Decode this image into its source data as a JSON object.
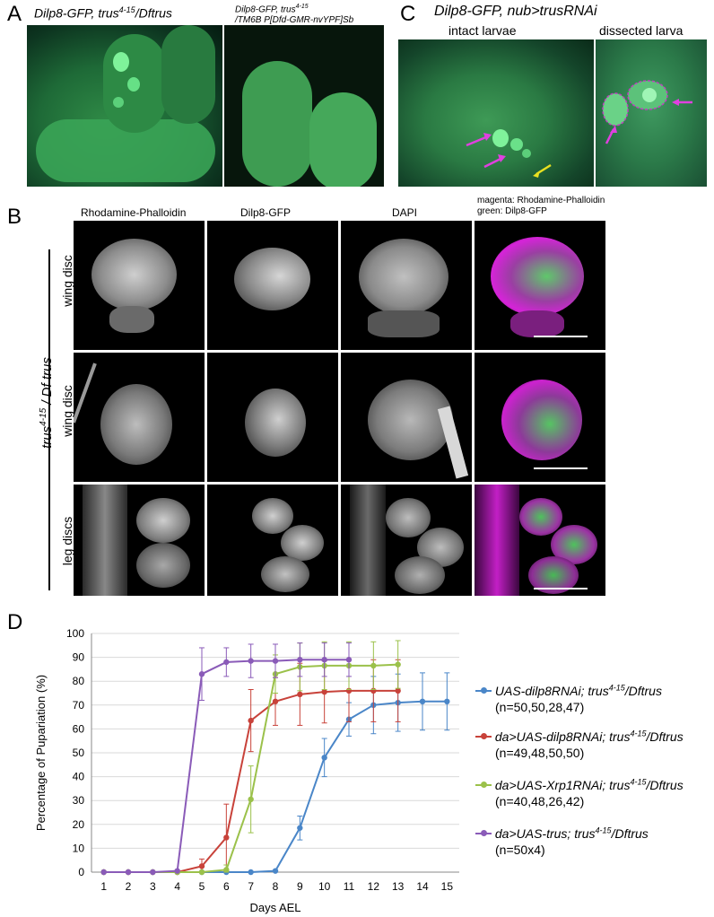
{
  "panelA": {
    "letter": "A",
    "left_label": "Dilp8-GFP, trus4-15/Dftrus",
    "right_label_line1": "Dilp8-GFP, trus4-15",
    "right_label_line2": "/TM6B P[Dfd-GMR-nvYPF]Sb"
  },
  "panelC": {
    "letter": "C",
    "title": "Dilp8-GFP, nub>trusRNAi",
    "left_label": "intact larvae",
    "right_label": "dissected larva"
  },
  "panelB": {
    "letter": "B",
    "columns": [
      "Rhodamine-Phalloidin",
      "Dilp8-GFP",
      "DAPI"
    ],
    "merge_label_line1": "magenta: Rhodamine-Phalloidin",
    "merge_label_line2": "green: Dilp8-GFP",
    "genotype": "trus4-15 / Df trus",
    "rows": [
      "wing disc",
      "wing disc",
      "leg discs"
    ]
  },
  "panelD": {
    "letter": "D"
  },
  "chart_data": {
    "type": "line",
    "xlabel": "Days AEL",
    "ylabel": "Percentage of Pupariation (%)",
    "xlim": [
      1,
      15
    ],
    "ylim": [
      0,
      100
    ],
    "x_ticks": [
      1,
      2,
      3,
      4,
      5,
      6,
      7,
      8,
      9,
      10,
      11,
      12,
      13,
      14,
      15
    ],
    "y_ticks": [
      0,
      10,
      20,
      30,
      40,
      50,
      60,
      70,
      80,
      90,
      100
    ],
    "grid": true,
    "legend_position": "right",
    "series": [
      {
        "name": "UAS-dilp8RNAi; trus4-15/Dftrus",
        "n_label": "(n=50,50,28,47)",
        "color": "#4a86c8",
        "x": [
          1,
          2,
          3,
          4,
          5,
          6,
          7,
          8,
          9,
          10,
          11,
          12,
          13,
          14,
          15
        ],
        "y": [
          0,
          0,
          0,
          0,
          0,
          0,
          0,
          0.5,
          18.5,
          48,
          64,
          70,
          71,
          71.5,
          71.5
        ],
        "err": [
          0,
          0,
          0,
          0,
          0,
          0,
          0,
          0,
          5,
          8,
          7,
          12,
          12,
          12,
          12
        ]
      },
      {
        "name": "da>UAS-dilp8RNAi; trus4-15/Dftrus",
        "n_label": "(n=49,48,50,50)",
        "color": "#c8423a",
        "x": [
          1,
          2,
          3,
          4,
          5,
          6,
          7,
          8,
          9,
          10,
          11,
          12,
          13
        ],
        "y": [
          0,
          0,
          0,
          0,
          2.5,
          14.5,
          63.5,
          71.5,
          74.5,
          75.5,
          76,
          76,
          76
        ],
        "err": [
          0,
          0,
          0,
          0,
          3,
          14,
          13,
          10,
          13,
          13,
          13,
          13,
          13
        ]
      },
      {
        "name": "da>UAS-Xrp1RNAi; trus4-15/Dftrus",
        "n_label": "(n=40,48,26,42)",
        "color": "#9bc14a",
        "x": [
          1,
          2,
          3,
          4,
          5,
          6,
          7,
          8,
          9,
          10,
          11,
          12,
          13
        ],
        "y": [
          0,
          0,
          0,
          0,
          0,
          1,
          30.5,
          83,
          86,
          86.5,
          86.5,
          86.5,
          87
        ],
        "err": [
          0,
          0,
          0,
          0,
          0,
          2,
          14,
          8,
          10,
          10,
          10,
          10,
          10
        ]
      },
      {
        "name": "da>UAS-trus; trus4-15/Dftrus",
        "n_label": "(n=50x4)",
        "color": "#8a5bb8",
        "x": [
          1,
          2,
          3,
          4,
          5,
          6,
          7,
          8,
          9,
          10,
          11
        ],
        "y": [
          0,
          0,
          0,
          0.5,
          83,
          88,
          88.5,
          88.5,
          89,
          89,
          89
        ],
        "err": [
          0,
          0,
          0,
          0,
          11,
          6,
          7,
          7,
          7,
          7,
          7
        ]
      }
    ]
  }
}
